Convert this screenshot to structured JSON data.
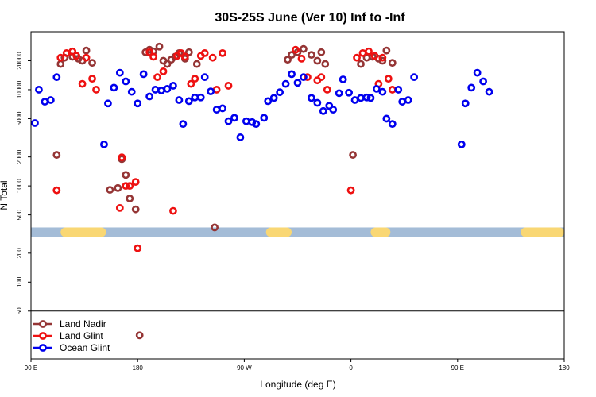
{
  "chart_data": {
    "type": "scatter",
    "title": "30S-25S June (Ver 10)   Inf to -Inf",
    "xlabel": "Longitude (deg E)",
    "ylabel": "N Total",
    "xlim": [
      -90,
      180
    ],
    "x_ticks": [
      {
        "value": -90,
        "label": "90 E"
      },
      {
        "value": -36,
        "label": "180"
      },
      {
        "value": 18,
        "label": "90 W"
      },
      {
        "value": 72,
        "label": "0"
      },
      {
        "value": 126,
        "label": "90 E"
      },
      {
        "value": 180,
        "label": "180"
      }
    ],
    "y_scale": "log",
    "ylim": [
      20,
      40000
    ],
    "y_ticks": [
      50,
      100,
      200,
      500,
      1000,
      2000,
      5000,
      10000,
      20000
    ],
    "band": {
      "y_value": 330,
      "color": "#a4bcd7",
      "highlight_color": "#f9d774",
      "highlight_ranges": [
        [
          -75,
          -52
        ],
        [
          29,
          42
        ],
        [
          82,
          92
        ],
        [
          158,
          182
        ]
      ]
    },
    "series": [
      {
        "name": "Land Nadir",
        "color": "#953535",
        "points": [
          [
            -77,
            2100
          ],
          [
            -75,
            18500
          ],
          [
            -73,
            21500
          ],
          [
            -69,
            22000
          ],
          [
            -66,
            21000
          ],
          [
            -64,
            20000
          ],
          [
            -62,
            25500
          ],
          [
            -59,
            19000
          ],
          [
            -50,
            910
          ],
          [
            -46,
            950
          ],
          [
            -44,
            1900
          ],
          [
            -42,
            1300
          ],
          [
            -40,
            740
          ],
          [
            -37,
            570
          ],
          [
            -35,
            28
          ],
          [
            -32,
            24500
          ],
          [
            -30,
            26000
          ],
          [
            -28,
            25000
          ],
          [
            -25,
            28000
          ],
          [
            -23,
            20000
          ],
          [
            -21,
            18500
          ],
          [
            -19,
            20500
          ],
          [
            -17,
            22000
          ],
          [
            -15,
            24000
          ],
          [
            -12,
            21000
          ],
          [
            -10,
            24500
          ],
          [
            -6,
            18500
          ],
          [
            3,
            370
          ],
          [
            40,
            20500
          ],
          [
            42,
            23000
          ],
          [
            45,
            24500
          ],
          [
            48,
            26500
          ],
          [
            52,
            23000
          ],
          [
            55,
            20000
          ],
          [
            57,
            24500
          ],
          [
            59,
            18500
          ],
          [
            73,
            2100
          ],
          [
            77,
            18500
          ],
          [
            80,
            21500
          ],
          [
            83,
            22000
          ],
          [
            86,
            21000
          ],
          [
            88,
            20000
          ],
          [
            90,
            25500
          ],
          [
            93,
            19000
          ]
        ]
      },
      {
        "name": "Land Glint",
        "color": "#ee1111",
        "points": [
          [
            -77,
            900
          ],
          [
            -75,
            21500
          ],
          [
            -72,
            24000
          ],
          [
            -69,
            25000
          ],
          [
            -67,
            22500
          ],
          [
            -64,
            11500
          ],
          [
            -62,
            21500
          ],
          [
            -59,
            13000
          ],
          [
            -57,
            10000
          ],
          [
            -45,
            590
          ],
          [
            -44,
            1980
          ],
          [
            -42,
            1000
          ],
          [
            -40,
            1000
          ],
          [
            -37,
            1100
          ],
          [
            -36,
            225
          ],
          [
            -30,
            24500
          ],
          [
            -28,
            22000
          ],
          [
            -26,
            13500
          ],
          [
            -23,
            15500
          ],
          [
            -18,
            550
          ],
          [
            -16,
            22500
          ],
          [
            -14,
            24000
          ],
          [
            -12,
            22000
          ],
          [
            -9,
            11500
          ],
          [
            -7,
            13000
          ],
          [
            -4,
            22500
          ],
          [
            -2,
            24000
          ],
          [
            2,
            21500
          ],
          [
            4,
            10000
          ],
          [
            7,
            24000
          ],
          [
            10,
            11000
          ],
          [
            44,
            26000
          ],
          [
            47,
            21000
          ],
          [
            50,
            13500
          ],
          [
            55,
            12500
          ],
          [
            57,
            13500
          ],
          [
            60,
            10000
          ],
          [
            72,
            900
          ],
          [
            75,
            21500
          ],
          [
            78,
            24000
          ],
          [
            81,
            25000
          ],
          [
            84,
            22500
          ],
          [
            86,
            11500
          ],
          [
            88,
            21500
          ],
          [
            91,
            13000
          ],
          [
            93,
            10000
          ]
        ]
      },
      {
        "name": "Ocean Glint",
        "color": "#0000ee",
        "points": [
          [
            -88,
            4500
          ],
          [
            -86,
            10000
          ],
          [
            -83,
            7500
          ],
          [
            -80,
            7800
          ],
          [
            -77,
            13500
          ],
          [
            -53,
            2700
          ],
          [
            -51,
            7200
          ],
          [
            -48,
            10500
          ],
          [
            -45,
            15000
          ],
          [
            -42,
            12200
          ],
          [
            -39,
            9500
          ],
          [
            -36,
            7200
          ],
          [
            -33,
            14500
          ],
          [
            -30,
            8500
          ],
          [
            -27,
            10000
          ],
          [
            -24,
            9800
          ],
          [
            -21,
            10200
          ],
          [
            -18,
            11000
          ],
          [
            -15,
            7800
          ],
          [
            -13,
            4400
          ],
          [
            -10,
            7600
          ],
          [
            -7,
            8300
          ],
          [
            -4,
            8300
          ],
          [
            -2,
            13500
          ],
          [
            1,
            9600
          ],
          [
            4,
            6200
          ],
          [
            7,
            6400
          ],
          [
            10,
            4700
          ],
          [
            13,
            5100
          ],
          [
            16,
            3200
          ],
          [
            19,
            4700
          ],
          [
            22,
            4600
          ],
          [
            24,
            4400
          ],
          [
            28,
            5100
          ],
          [
            30,
            7600
          ],
          [
            33,
            8200
          ],
          [
            36,
            9400
          ],
          [
            39,
            11500
          ],
          [
            42,
            14500
          ],
          [
            45,
            11800
          ],
          [
            48,
            13500
          ],
          [
            52,
            8200
          ],
          [
            55,
            7300
          ],
          [
            58,
            6000
          ],
          [
            61,
            6800
          ],
          [
            63,
            6200
          ],
          [
            66,
            9200
          ],
          [
            68,
            12800
          ],
          [
            71,
            9300
          ],
          [
            74,
            7800
          ],
          [
            77,
            8200
          ],
          [
            80,
            8300
          ],
          [
            82,
            8200
          ],
          [
            85,
            10200
          ],
          [
            88,
            9500
          ],
          [
            90,
            5000
          ],
          [
            93,
            4400
          ],
          [
            96,
            10000
          ],
          [
            98,
            7500
          ],
          [
            101,
            7800
          ],
          [
            104,
            13500
          ],
          [
            128,
            2700
          ],
          [
            130,
            7200
          ],
          [
            133,
            10500
          ],
          [
            136,
            15000
          ],
          [
            139,
            12200
          ],
          [
            142,
            9500
          ]
        ]
      }
    ],
    "legend": {
      "position": "bottom-left",
      "entries": [
        "Land Nadir",
        "Land Glint",
        "Ocean Glint"
      ]
    }
  }
}
